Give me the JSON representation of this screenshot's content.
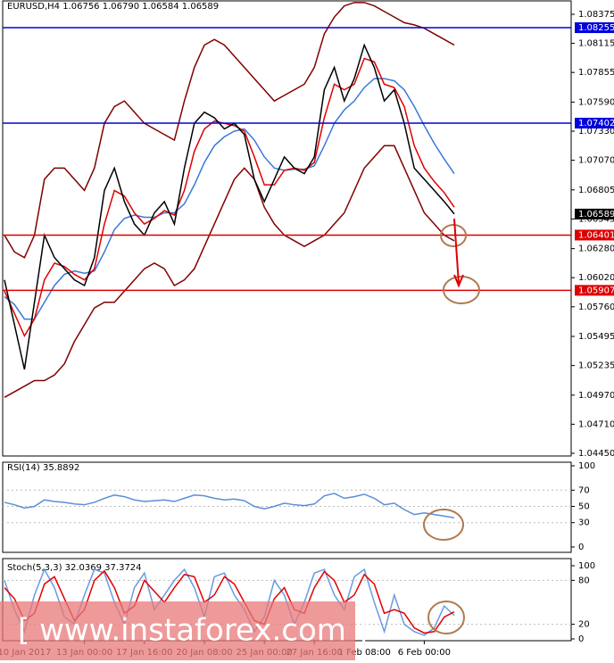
{
  "chart_data": [
    {
      "type": "line",
      "title": "EURUSD,H4  1.06756 1.06790 1.06584 1.06589",
      "categories": [
        null,
        null,
        "10 Jan 2017",
        null,
        null,
        null,
        null,
        null,
        "13 Jan 00:00",
        null,
        null,
        null,
        null,
        null,
        "17 Jan 16:00",
        null,
        null,
        null,
        null,
        null,
        "20 Jan 08:00",
        null,
        null,
        null,
        null,
        null,
        "25 Jan 00:00",
        null,
        null,
        null,
        null,
        "27 Jan 16:00",
        null,
        null,
        null,
        null,
        "1 Feb 08:00",
        null,
        null,
        null,
        null,
        null,
        "6 Feb 00:00",
        null,
        null,
        null
      ],
      "series": [
        {
          "name": "Upper band",
          "color": "#800000",
          "values": [
            1.064,
            1.0625,
            1.062,
            1.064,
            1.069,
            1.07,
            1.07,
            1.069,
            1.068,
            1.07,
            1.074,
            1.0755,
            1.076,
            1.075,
            1.074,
            1.0735,
            1.073,
            1.0725,
            1.076,
            1.079,
            1.081,
            1.0815,
            1.081,
            1.08,
            1.079,
            1.078,
            1.077,
            1.076,
            1.0765,
            1.077,
            1.0775,
            1.079,
            1.082,
            1.0835,
            1.0845,
            1.0848,
            1.0848,
            1.0845,
            1.084,
            1.0835,
            1.083,
            1.0828,
            1.0825,
            1.082,
            1.0815,
            1.081
          ]
        },
        {
          "name": "Lower band",
          "color": "#800000",
          "values": [
            1.0495,
            1.05,
            1.0505,
            1.051,
            1.051,
            1.0515,
            1.0525,
            1.0545,
            1.056,
            1.0575,
            1.058,
            1.058,
            1.059,
            1.06,
            1.061,
            1.0615,
            1.061,
            1.0595,
            1.06,
            1.061,
            1.063,
            1.065,
            1.067,
            1.069,
            1.07,
            1.069,
            1.0665,
            1.065,
            1.064,
            1.0635,
            1.063,
            1.0635,
            1.064,
            1.065,
            1.066,
            1.068,
            1.07,
            1.071,
            1.072,
            1.072,
            1.07,
            1.068,
            1.066,
            1.065,
            1.064,
            1.0635
          ]
        },
        {
          "name": "Slow MA",
          "color": "#3a78d8",
          "values": [
            1.0585,
            1.0578,
            1.0565,
            1.0565,
            1.058,
            1.0595,
            1.0605,
            1.0608,
            1.0606,
            1.0608,
            1.0625,
            1.0645,
            1.0655,
            1.0658,
            1.0656,
            1.0656,
            1.066,
            1.066,
            1.0668,
            1.0685,
            1.0705,
            1.072,
            1.0728,
            1.0733,
            1.0735,
            1.0725,
            1.071,
            1.07,
            1.0698,
            1.0699,
            1.0699,
            1.0702,
            1.072,
            1.074,
            1.0752,
            1.076,
            1.0772,
            1.078,
            1.078,
            1.0778,
            1.077,
            1.0755,
            1.0738,
            1.0722,
            1.0708,
            1.0695
          ]
        },
        {
          "name": "Fast MA",
          "color": "#e00000",
          "values": [
            1.059,
            1.057,
            1.055,
            1.0565,
            1.06,
            1.0615,
            1.0612,
            1.0605,
            1.06,
            1.061,
            1.065,
            1.068,
            1.0675,
            1.066,
            1.065,
            1.0655,
            1.0662,
            1.0658,
            1.068,
            1.0715,
            1.0735,
            1.0742,
            1.074,
            1.0738,
            1.0733,
            1.071,
            1.0685,
            1.0685,
            1.0698,
            1.07,
            1.0698,
            1.0705,
            1.0745,
            1.0775,
            1.077,
            1.0775,
            1.0798,
            1.0795,
            1.0775,
            1.0772,
            1.0755,
            1.072,
            1.07,
            1.0688,
            1.0678,
            1.0665
          ]
        },
        {
          "name": "Close",
          "color": "#000000",
          "values": [
            1.06,
            1.056,
            1.052,
            1.058,
            1.064,
            1.062,
            1.061,
            1.06,
            1.0595,
            1.062,
            1.068,
            1.07,
            1.067,
            1.065,
            1.064,
            1.066,
            1.067,
            1.065,
            1.07,
            1.074,
            1.075,
            1.0745,
            1.0735,
            1.074,
            1.073,
            1.069,
            1.067,
            1.069,
            1.071,
            1.07,
            1.0695,
            1.071,
            1.077,
            1.079,
            1.076,
            1.078,
            1.081,
            1.079,
            1.076,
            1.077,
            1.074,
            1.07,
            1.069,
            1.068,
            1.067,
            1.0659
          ]
        }
      ],
      "ylim": [
        1.0445,
        1.08375
      ],
      "yticks": [
        1.08375,
        1.08115,
        1.07855,
        {
          "value": 1.0759,
          "label": "1.07590"
        },
        {
          "value": 1.0733,
          "label": "1.07330"
        },
        {
          "value": 1.0707,
          "label": "1.07070"
        },
        1.06805,
        1.06545,
        {
          "value": 1.0628,
          "label": "1.06280"
        },
        {
          "value": 1.0602,
          "label": "1.06020"
        },
        {
          "value": 1.0576,
          "label": "1.05760"
        },
        1.05495,
        1.05235,
        {
          "value": 1.0497,
          "label": "1.04970"
        },
        {
          "value": 1.0471,
          "label": "1.04710"
        },
        {
          "value": 1.0445,
          "label": "1.04450"
        }
      ],
      "grid": false,
      "levels": [
        {
          "value": 1.08255,
          "color": "#0000dd"
        },
        {
          "value": 1.07402,
          "color": "#0000dd"
        },
        {
          "value": 1.06589,
          "color": "#000000"
        },
        {
          "value": 1.06401,
          "color": "#dd0000"
        },
        {
          "value": 1.05907,
          "color": "#dd0000"
        }
      ]
    },
    {
      "type": "line",
      "title": "RSI(14) 35.8892",
      "series": [
        {
          "name": "RSI",
          "color": "#5b8fd6",
          "values": [
            55,
            52,
            48,
            50,
            58,
            56,
            55,
            53,
            52,
            55,
            60,
            64,
            62,
            58,
            56,
            57,
            58,
            56,
            60,
            64,
            63,
            60,
            58,
            59,
            57,
            50,
            47,
            50,
            54,
            52,
            51,
            53,
            63,
            66,
            60,
            62,
            65,
            60,
            52,
            54,
            46,
            40,
            42,
            40,
            38,
            36
          ]
        }
      ],
      "ylim": [
        0,
        100
      ],
      "yticks": [
        100,
        70,
        50,
        30,
        0
      ],
      "grid": true
    },
    {
      "type": "line",
      "title": "Stoch(5,3,3) 32.0369 37.3724",
      "series": [
        {
          "name": "Main",
          "color": "#6a9be0",
          "values": [
            80,
            40,
            10,
            60,
            95,
            70,
            30,
            20,
            60,
            95,
            90,
            50,
            20,
            70,
            90,
            40,
            60,
            80,
            95,
            70,
            30,
            85,
            90,
            60,
            40,
            10,
            30,
            80,
            60,
            20,
            50,
            90,
            95,
            60,
            40,
            85,
            95,
            50,
            10,
            60,
            20,
            10,
            5,
            15,
            45,
            32
          ]
        },
        {
          "name": "Signal",
          "color": "#e00000",
          "values": [
            70,
            55,
            25,
            35,
            75,
            85,
            55,
            25,
            40,
            80,
            93,
            70,
            35,
            45,
            80,
            65,
            50,
            70,
            88,
            85,
            50,
            60,
            85,
            75,
            50,
            25,
            20,
            55,
            70,
            40,
            35,
            70,
            92,
            80,
            50,
            60,
            88,
            75,
            35,
            40,
            35,
            15,
            8,
            10,
            30,
            37
          ]
        }
      ],
      "ylim": [
        0,
        100
      ],
      "yticks": [
        100,
        80,
        20,
        0
      ],
      "grid": true
    }
  ],
  "watermark": "[ www.instaforex.com ]"
}
